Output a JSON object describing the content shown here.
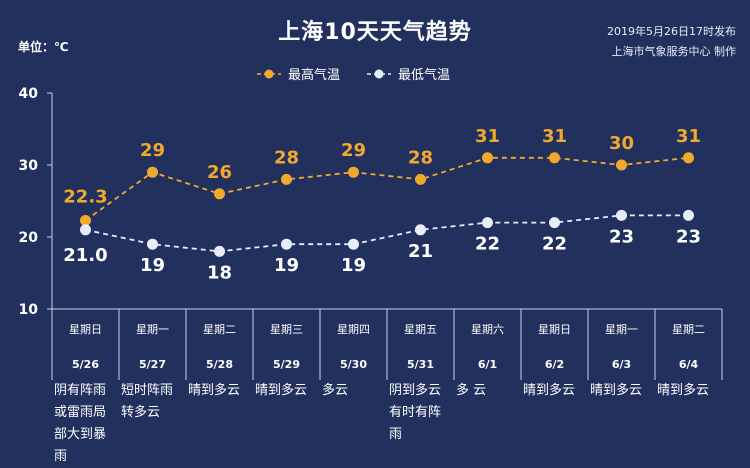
{
  "header": {
    "title": "上海10天天气趋势",
    "unit": "单位：℃",
    "publish_time": "2019年5月26日17时发布",
    "publisher": "上海市气象服务中心 制作"
  },
  "colors": {
    "high": "#f0a92e",
    "low": "#e6ecf8",
    "background": "#22305e"
  },
  "chart_data": {
    "type": "line",
    "title": "上海10天天气趋势",
    "ylabel": "单位：℃",
    "ylim": [
      10,
      40
    ],
    "yticks": [
      "10",
      "20",
      "30",
      "40"
    ],
    "grid": false,
    "legend_position": "top",
    "x": [
      {
        "weekday": "星期日",
        "date": "5/26"
      },
      {
        "weekday": "星期一",
        "date": "5/27"
      },
      {
        "weekday": "星期二",
        "date": "5/28"
      },
      {
        "weekday": "星期三",
        "date": "5/29"
      },
      {
        "weekday": "星期四",
        "date": "5/30"
      },
      {
        "weekday": "星期五",
        "date": "5/31"
      },
      {
        "weekday": "星期六",
        "date": "6/1"
      },
      {
        "weekday": "星期日",
        "date": "6/2"
      },
      {
        "weekday": "星期一",
        "date": "6/3"
      },
      {
        "weekday": "星期二",
        "date": "6/4"
      }
    ],
    "series": [
      {
        "name": "最高气温",
        "values": [
          22.3,
          29,
          26,
          28,
          29,
          28,
          31,
          31,
          30,
          31
        ],
        "labels": [
          "22.3",
          "29",
          "26",
          "28",
          "29",
          "28",
          "31",
          "31",
          "30",
          "31"
        ]
      },
      {
        "name": "最低气温",
        "values": [
          21.0,
          19,
          18,
          19,
          19,
          21,
          22,
          22,
          23,
          23
        ],
        "labels": [
          "21.0",
          "19",
          "18",
          "19",
          "19",
          "21",
          "22",
          "22",
          "23",
          "23"
        ]
      }
    ],
    "weather": [
      "阴有阵雨或雷雨局部大到暴雨",
      "短时阵雨转多云",
      "晴到多云",
      "晴到多云",
      "多云",
      "阴到多云有时有阵雨",
      "多 云",
      "晴到多云",
      "晴到多云",
      "晴到多云"
    ]
  }
}
